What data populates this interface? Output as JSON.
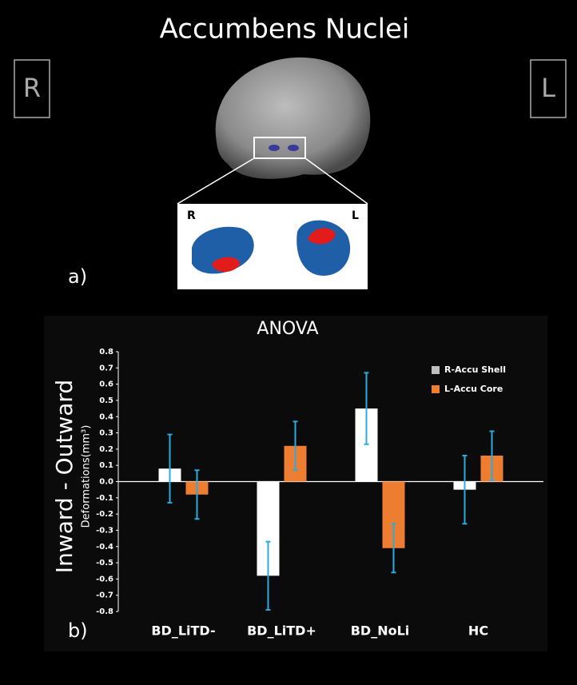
{
  "figure": {
    "title": "Accumbens Nuclei",
    "left_label": "R",
    "right_label": "L",
    "inset_left": "R",
    "inset_right": "L",
    "panel_a": "a)",
    "panel_b": "b)"
  },
  "chart_data": {
    "type": "bar",
    "title": "ANOVA",
    "y_label": "Inward - Outward",
    "y_sublabel": "Deformations(mm³)",
    "categories": [
      "BD_LiTD-",
      "BD_LiTD+",
      "BD_NoLi",
      "HC"
    ],
    "series": [
      {
        "name": "R-Accu Shell",
        "color": "#ffffff",
        "values": [
          0.08,
          -0.58,
          0.45,
          -0.05
        ],
        "errors": [
          0.21,
          0.21,
          0.22,
          0.21
        ]
      },
      {
        "name": "L-Accu Core",
        "color": "#ed7d31",
        "values": [
          -0.08,
          0.22,
          -0.41,
          0.16
        ],
        "errors": [
          0.15,
          0.15,
          0.15,
          0.15
        ]
      }
    ],
    "error_color": "#29abe2",
    "ylim": [
      -0.8,
      0.8
    ],
    "yticks": [
      0.8,
      0.7,
      0.6,
      0.5,
      0.4,
      0.3,
      0.2,
      0.1,
      {
        "value": 0,
        "label": "0.0"
      },
      -0.1,
      -0.2,
      -0.3,
      -0.4,
      -0.5,
      -0.6,
      -0.7,
      -0.8
    ],
    "legend": "upper right"
  }
}
